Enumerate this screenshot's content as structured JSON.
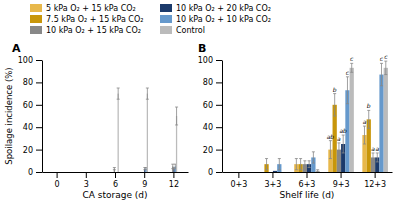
{
  "chart_data": [
    {
      "type": "bar",
      "title": "A",
      "xlabel": "CA storage (d)",
      "ylabel": "Spoilage incidence (%)",
      "x": [
        0,
        3,
        6,
        9,
        12
      ],
      "xlim": [
        -1.5,
        13.5
      ],
      "xticks": [
        0,
        3,
        6,
        9,
        12
      ],
      "ylim": [
        0,
        100
      ],
      "yticks": [
        0,
        20,
        40,
        60,
        80,
        100
      ],
      "series": [
        {
          "name": "5 kPa O₂ + 15 kPa CO₂",
          "color": "#E8B84B",
          "values": [
            0,
            0,
            0,
            0,
            0
          ],
          "errors": [
            0,
            0,
            0,
            0,
            0
          ]
        },
        {
          "name": "7.5 kPa O₂ + 15 kPa CO₂",
          "color": "#C8960A",
          "values": [
            0,
            0,
            0,
            0,
            0
          ],
          "errors": [
            0,
            0,
            0,
            0,
            0
          ]
        },
        {
          "name": "10 kPa O₂ + 15 kPa CO₂",
          "color": "#888888",
          "values": [
            0,
            0,
            3,
            0,
            5
          ],
          "errors": [
            0,
            0,
            1,
            0,
            2
          ]
        },
        {
          "name": "10 kPa O₂ + 20 kPa CO₂",
          "color": "#1B3A6B",
          "values": [
            0,
            0,
            0,
            3,
            3
          ],
          "errors": [
            0,
            0,
            0,
            1,
            1
          ]
        },
        {
          "name": "10 kPa O₂ + 10 kPa CO₂",
          "color": "#6699CC",
          "values": [
            0,
            0,
            0,
            3,
            5
          ],
          "errors": [
            0,
            0,
            0,
            1,
            2
          ]
        },
        {
          "name": "Control",
          "color": "#BBBBBB",
          "values": [
            0,
            0,
            70,
            70,
            50
          ],
          "errors": [
            0,
            0,
            5,
            5,
            8
          ]
        }
      ]
    },
    {
      "type": "bar",
      "title": "B",
      "xlabel": "Shelf life (d)",
      "categories": [
        "0+3",
        "3+3",
        "6+3",
        "9+3",
        "12+3"
      ],
      "ylim": [
        0,
        100
      ],
      "yticks": [
        0,
        20,
        40,
        60,
        80,
        100
      ],
      "series": [
        {
          "color": "#E8B84B",
          "values": [
            0,
            0,
            7,
            20,
            33
          ],
          "errors": [
            0,
            0,
            5,
            8,
            8
          ],
          "letters": [
            null,
            null,
            null,
            "ab",
            "a"
          ]
        },
        {
          "color": "#C8960A",
          "values": [
            0,
            7,
            7,
            60,
            47
          ],
          "errors": [
            0,
            5,
            5,
            10,
            8
          ],
          "letters": [
            null,
            null,
            null,
            "b",
            "b"
          ]
        },
        {
          "color": "#888888",
          "values": [
            0,
            0,
            7,
            20,
            13
          ],
          "errors": [
            0,
            0,
            3,
            6,
            4
          ],
          "letters": [
            null,
            null,
            null,
            "a",
            "a"
          ]
        },
        {
          "color": "#1B3A6B",
          "values": [
            0,
            1,
            7,
            25,
            13
          ],
          "errors": [
            0,
            0,
            3,
            8,
            4
          ],
          "letters": [
            null,
            null,
            null,
            "ab",
            "a"
          ]
        },
        {
          "color": "#6699CC",
          "values": [
            0,
            7,
            13,
            73,
            87
          ],
          "errors": [
            0,
            5,
            5,
            12,
            10
          ],
          "letters": [
            null,
            null,
            null,
            "c",
            "c"
          ]
        },
        {
          "color": "#BBBBBB",
          "values": [
            0,
            0,
            1,
            93,
            93
          ],
          "errors": [
            0,
            0,
            1,
            4,
            6
          ],
          "letters": [
            null,
            null,
            null,
            "c",
            "c"
          ]
        }
      ]
    }
  ]
}
